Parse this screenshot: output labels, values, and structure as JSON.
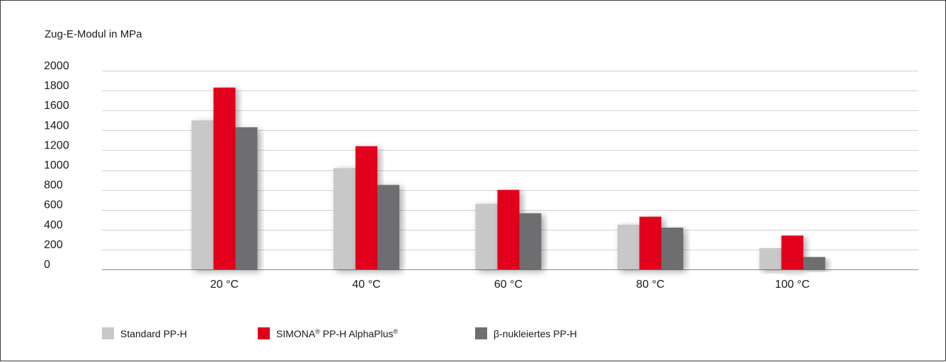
{
  "chart_data": {
    "type": "bar",
    "ylabel": "Zug-E-Modul in MPa",
    "xlabel": "",
    "ylim": [
      0,
      2000
    ],
    "yticks": [
      0,
      200,
      400,
      600,
      800,
      1000,
      1200,
      1400,
      1600,
      1800,
      2000
    ],
    "grid": true,
    "legend_position": "bottom-left",
    "categories": [
      "20 °C",
      "40 °C",
      "60 °C",
      "80 °C",
      "100 °C"
    ],
    "series": [
      {
        "name": "Standard PP-H",
        "color": "#c8c8c8",
        "values": [
          1500,
          1020,
          660,
          450,
          215
        ]
      },
      {
        "name": "SIMONA® PP-H AlphaPlus®",
        "color": "#e2001a",
        "values": [
          1830,
          1240,
          800,
          530,
          340
        ]
      },
      {
        "name": "β-nukleiertes PP-H",
        "color": "#6e6e70",
        "values": [
          1430,
          850,
          565,
          420,
          125
        ]
      }
    ]
  }
}
